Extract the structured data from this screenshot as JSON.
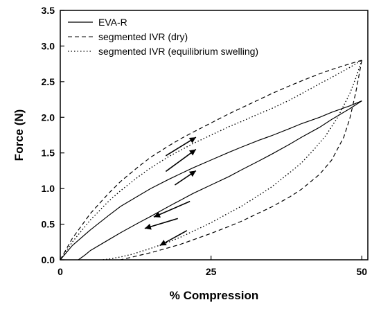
{
  "chart_data": {
    "type": "line",
    "title": "",
    "xlabel": "% Compression",
    "ylabel": "Force (N)",
    "xlim": [
      0,
      51
    ],
    "ylim": [
      0,
      3.5
    ],
    "x_ticks": [
      "0",
      "25",
      "50"
    ],
    "y_ticks": [
      "0.0",
      "0.5",
      "1.0",
      "1.5",
      "2.0",
      "2.5",
      "3.0",
      "3.5"
    ],
    "x_tick_values": [
      0,
      25,
      50
    ],
    "y_tick_values": [
      0,
      0.5,
      1.0,
      1.5,
      2.0,
      2.5,
      3.0,
      3.5
    ],
    "grid": false,
    "legend_position": "top-left",
    "series": [
      {
        "name": "EVA-R",
        "line_style": "solid",
        "loading": {
          "x": [
            0,
            2,
            5,
            8,
            10,
            13,
            15,
            18,
            20,
            22,
            25,
            28,
            30,
            33,
            35,
            38,
            40,
            43,
            45,
            48,
            50
          ],
          "y": [
            0,
            0.2,
            0.42,
            0.62,
            0.75,
            0.9,
            1.0,
            1.13,
            1.21,
            1.29,
            1.4,
            1.51,
            1.58,
            1.68,
            1.74,
            1.84,
            1.91,
            2.0,
            2.07,
            2.16,
            2.23
          ]
        },
        "unloading": {
          "x": [
            50,
            48,
            45,
            43,
            40,
            38,
            35,
            33,
            30,
            28,
            25,
            22,
            20,
            18,
            15,
            13,
            10,
            8,
            5,
            4,
            3
          ],
          "y": [
            2.23,
            2.12,
            1.97,
            1.86,
            1.72,
            1.62,
            1.48,
            1.39,
            1.26,
            1.17,
            1.05,
            0.93,
            0.84,
            0.75,
            0.61,
            0.52,
            0.38,
            0.28,
            0.13,
            0.06,
            0.0
          ]
        }
      },
      {
        "name": "segmented IVR (dry)",
        "line_style": "dashed",
        "loading": {
          "x": [
            0,
            2,
            5,
            8,
            10,
            13,
            15,
            18,
            20,
            22,
            25,
            28,
            30,
            33,
            35,
            38,
            40,
            43,
            45,
            48,
            50
          ],
          "y": [
            0,
            0.3,
            0.65,
            0.93,
            1.1,
            1.31,
            1.44,
            1.6,
            1.7,
            1.79,
            1.92,
            2.05,
            2.13,
            2.25,
            2.33,
            2.44,
            2.51,
            2.61,
            2.67,
            2.75,
            2.8
          ]
        },
        "unloading": {
          "x": [
            50,
            49,
            48,
            47,
            45,
            43,
            40,
            38,
            35,
            33,
            30,
            28,
            25,
            23,
            20,
            18,
            15,
            13,
            12,
            11,
            10
          ],
          "y": [
            2.8,
            2.35,
            1.98,
            1.72,
            1.4,
            1.2,
            0.99,
            0.88,
            0.74,
            0.66,
            0.54,
            0.47,
            0.37,
            0.31,
            0.22,
            0.17,
            0.1,
            0.06,
            0.04,
            0.02,
            0.0
          ]
        }
      },
      {
        "name": "segmented IVR (equilibrium swelling)",
        "line_style": "dotted",
        "loading": {
          "x": [
            0,
            2,
            5,
            8,
            10,
            13,
            15,
            18,
            20,
            22,
            25,
            28,
            30,
            33,
            35,
            38,
            40,
            43,
            45,
            48,
            50
          ],
          "y": [
            0,
            0.25,
            0.56,
            0.82,
            0.97,
            1.17,
            1.29,
            1.45,
            1.54,
            1.63,
            1.75,
            1.87,
            1.94,
            2.05,
            2.12,
            2.24,
            2.33,
            2.47,
            2.56,
            2.7,
            2.8
          ]
        },
        "unloading": {
          "x": [
            50,
            49,
            48,
            46,
            44,
            42,
            40,
            38,
            35,
            33,
            30,
            28,
            25,
            22,
            20,
            18,
            15,
            12,
            10,
            8,
            7
          ],
          "y": [
            2.8,
            2.55,
            2.33,
            2.0,
            1.74,
            1.54,
            1.36,
            1.22,
            1.02,
            0.91,
            0.75,
            0.66,
            0.52,
            0.4,
            0.32,
            0.25,
            0.16,
            0.08,
            0.04,
            0.01,
            0.0
          ]
        }
      }
    ]
  }
}
